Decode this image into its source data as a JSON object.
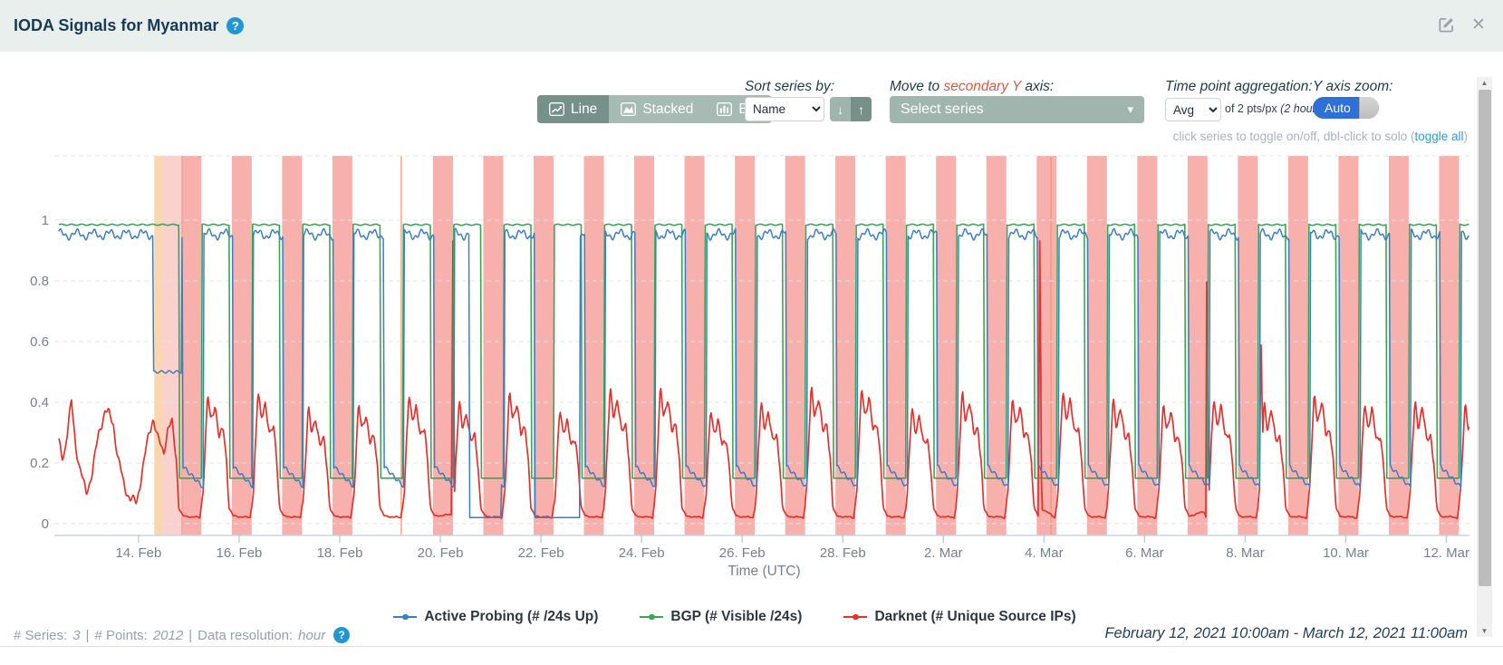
{
  "header": {
    "title": "IODA Signals for Myanmar"
  },
  "icons": {
    "help": "?",
    "close": "✕",
    "chevron_down": "▾",
    "arrow_down": "↓",
    "arrow_up": "↑",
    "scroll_up": "▲",
    "scroll_down": "▼"
  },
  "toolbar": {
    "chart_type": {
      "line": "Line",
      "stacked": "Stacked",
      "bar": "Bar",
      "active": "Line"
    },
    "sort": {
      "label": "Sort series by:",
      "value": "Name"
    },
    "secondary_axis": {
      "label_prefix": "Move to ",
      "label_highlight": "secondary Y",
      "label_suffix": " axis:",
      "placeholder": "Select series"
    },
    "aggregation": {
      "label": "Time point aggregation:",
      "value": "Avg",
      "suffix": "of 2 pts/px ",
      "suffix_italic": "(2 hours)"
    },
    "y_zoom": {
      "label": "Y axis zoom:",
      "toggle": "Auto"
    },
    "hint": {
      "text": "click series to toggle on/off, dbl-click to solo (",
      "link": "toggle all",
      "close": ")"
    }
  },
  "footer": {
    "series_label": "# Series:",
    "series_value": "3",
    "points_label": "# Points:",
    "points_value": "2012",
    "resolution_label": "Data resolution:",
    "resolution_value": "hour",
    "sep": "|",
    "range": "February 12, 2021 10:00am - March 12, 2021 11:00am"
  },
  "chart_data": {
    "type": "line",
    "xlabel": "Time (UTC)",
    "x_epoch": "February 12, 2021 10:00am UTC",
    "x_range_hours": [
      0,
      673
    ],
    "ylim": [
      0,
      1.18
    ],
    "y_ticks": [
      0,
      0.2,
      0.4,
      0.6,
      0.8,
      1
    ],
    "grid": "horizontal-dashed",
    "legend_position": "bottom",
    "x_ticks": [
      {
        "label": "14. Feb",
        "hour": 38
      },
      {
        "label": "16. Feb",
        "hour": 86
      },
      {
        "label": "18. Feb",
        "hour": 134
      },
      {
        "label": "20. Feb",
        "hour": 182
      },
      {
        "label": "22. Feb",
        "hour": 230
      },
      {
        "label": "24. Feb",
        "hour": 278
      },
      {
        "label": "26. Feb",
        "hour": 326
      },
      {
        "label": "28. Feb",
        "hour": 374
      },
      {
        "label": "2. Mar",
        "hour": 422
      },
      {
        "label": "4. Mar",
        "hour": 470
      },
      {
        "label": "6. Mar",
        "hour": 518
      },
      {
        "label": "8. Mar",
        "hour": 566
      },
      {
        "label": "10. Mar",
        "hour": 614
      },
      {
        "label": "12. Mar",
        "hour": 662
      }
    ],
    "colors": {
      "band_dark": "rgba(240,104,96,0.52)",
      "band_light": "rgba(246,152,146,0.45)",
      "band_orange": "rgba(250,200,150,0.75)",
      "thin_line": "rgba(246,150,120,0.85)",
      "axis": "#c9d6e2",
      "tick": "#b9c6d2",
      "grid": "#e1e4e8",
      "label": "#76828e"
    },
    "initial_outage_shading": {
      "orange": [
        45.5,
        49.5
      ],
      "pink": [
        49.5,
        59
      ]
    },
    "thin_marker_lines": [
      163,
      473
    ],
    "outage_night_windows": [
      {
        "start": 58.5,
        "end": 68,
        "shaded": true
      },
      {
        "start": 82.5,
        "end": 92,
        "shaded": true
      },
      {
        "start": 106.5,
        "end": 116,
        "shaded": true
      },
      {
        "start": 130.5,
        "end": 140,
        "shaded": true
      },
      {
        "start": 154.5,
        "end": 164,
        "shaded": false
      },
      {
        "start": 178.5,
        "end": 188,
        "shaded": true
      },
      {
        "start": 202.5,
        "end": 212,
        "shaded": true
      },
      {
        "start": 226.5,
        "end": 236,
        "shaded": true
      },
      {
        "start": 250.5,
        "end": 260,
        "shaded": true
      },
      {
        "start": 274.5,
        "end": 284,
        "shaded": true
      },
      {
        "start": 298.5,
        "end": 308,
        "shaded": true
      },
      {
        "start": 322.5,
        "end": 332,
        "shaded": true
      },
      {
        "start": 346.5,
        "end": 356,
        "shaded": true
      },
      {
        "start": 370.5,
        "end": 380,
        "shaded": true
      },
      {
        "start": 394.5,
        "end": 404,
        "shaded": true
      },
      {
        "start": 418.5,
        "end": 428,
        "shaded": true
      },
      {
        "start": 442.5,
        "end": 452,
        "shaded": true
      },
      {
        "start": 466.5,
        "end": 476,
        "shaded": true
      },
      {
        "start": 490.5,
        "end": 500,
        "shaded": true
      },
      {
        "start": 514.5,
        "end": 524,
        "shaded": true
      },
      {
        "start": 538.5,
        "end": 548,
        "shaded": true
      },
      {
        "start": 562.5,
        "end": 572,
        "shaded": true
      },
      {
        "start": 586.5,
        "end": 596,
        "shaded": true
      },
      {
        "start": 610.5,
        "end": 620,
        "shaded": true
      },
      {
        "start": 634.5,
        "end": 644,
        "shaded": true
      },
      {
        "start": 658.5,
        "end": 668,
        "shaded": true
      }
    ],
    "series": [
      {
        "id": "active_probing",
        "name": "Active Probing (# /24s Up)",
        "color": "#3a7fc2",
        "baseline": 0.953,
        "noise": 0.012,
        "outage_floor_start": 0.19,
        "outage_floor_end": 0.12,
        "mid_drop": {
          "start": 45,
          "end": 58.5,
          "value": 0.5
        },
        "zero_segments": [
          [
            196,
            211
          ],
          [
            227,
            248.5
          ]
        ],
        "zero_value": 0.02
      },
      {
        "id": "bgp",
        "name": "BGP (# Visible /24s)",
        "color": "#39a654",
        "baseline": 0.985,
        "noise": 0.002,
        "outage_floor": 0.15,
        "drop_lead_hours": 1,
        "drop_lag_hours": 0.3
      },
      {
        "id": "darknet",
        "name": "Darknet (# Unique Source IPs)",
        "color": "#e8302a",
        "noise": 0.012,
        "outage_floor": 0.02,
        "diurnal_peak_base": 0.37,
        "diurnal_peak_var": 0.08,
        "pre_keypoints": [
          [
            0,
            0.27
          ],
          [
            1.5,
            0.22
          ],
          [
            3,
            0.25
          ],
          [
            6,
            0.4
          ],
          [
            8,
            0.26
          ],
          [
            10,
            0.18
          ],
          [
            13,
            0.1
          ],
          [
            16,
            0.17
          ],
          [
            19,
            0.3
          ],
          [
            22,
            0.37
          ],
          [
            24,
            0.36
          ],
          [
            26,
            0.33
          ],
          [
            28,
            0.22
          ],
          [
            31,
            0.13
          ],
          [
            34,
            0.08
          ],
          [
            37,
            0.07
          ],
          [
            40,
            0.18
          ],
          [
            43,
            0.3
          ],
          [
            45,
            0.35
          ],
          [
            47,
            0.28
          ],
          [
            50,
            0.24
          ],
          [
            52,
            0.31
          ],
          [
            54,
            0.33
          ],
          [
            56,
            0.22
          ]
        ],
        "post_offsets": [
          0.8,
          3,
          4.5,
          6.5,
          8.5,
          10.5,
          12,
          13
        ],
        "post_fracs": [
          0.28,
          1.0,
          0.8,
          0.95,
          0.66,
          0.74,
          0.5,
          0.2
        ],
        "spike_keypoints": [
          [
            187.2,
            0.03
          ],
          [
            188,
            0.95
          ],
          [
            188.9,
            0.15
          ],
          [
            467.3,
            0.06
          ],
          [
            468,
            0.93
          ],
          [
            468.9,
            0.05
          ],
          [
            546.6,
            0.04
          ],
          [
            547.5,
            0.87
          ],
          [
            548.4,
            0.25
          ],
          [
            572.8,
            0.12
          ],
          [
            573.5,
            0.62
          ],
          [
            574.3,
            0.28
          ]
        ]
      }
    ]
  }
}
